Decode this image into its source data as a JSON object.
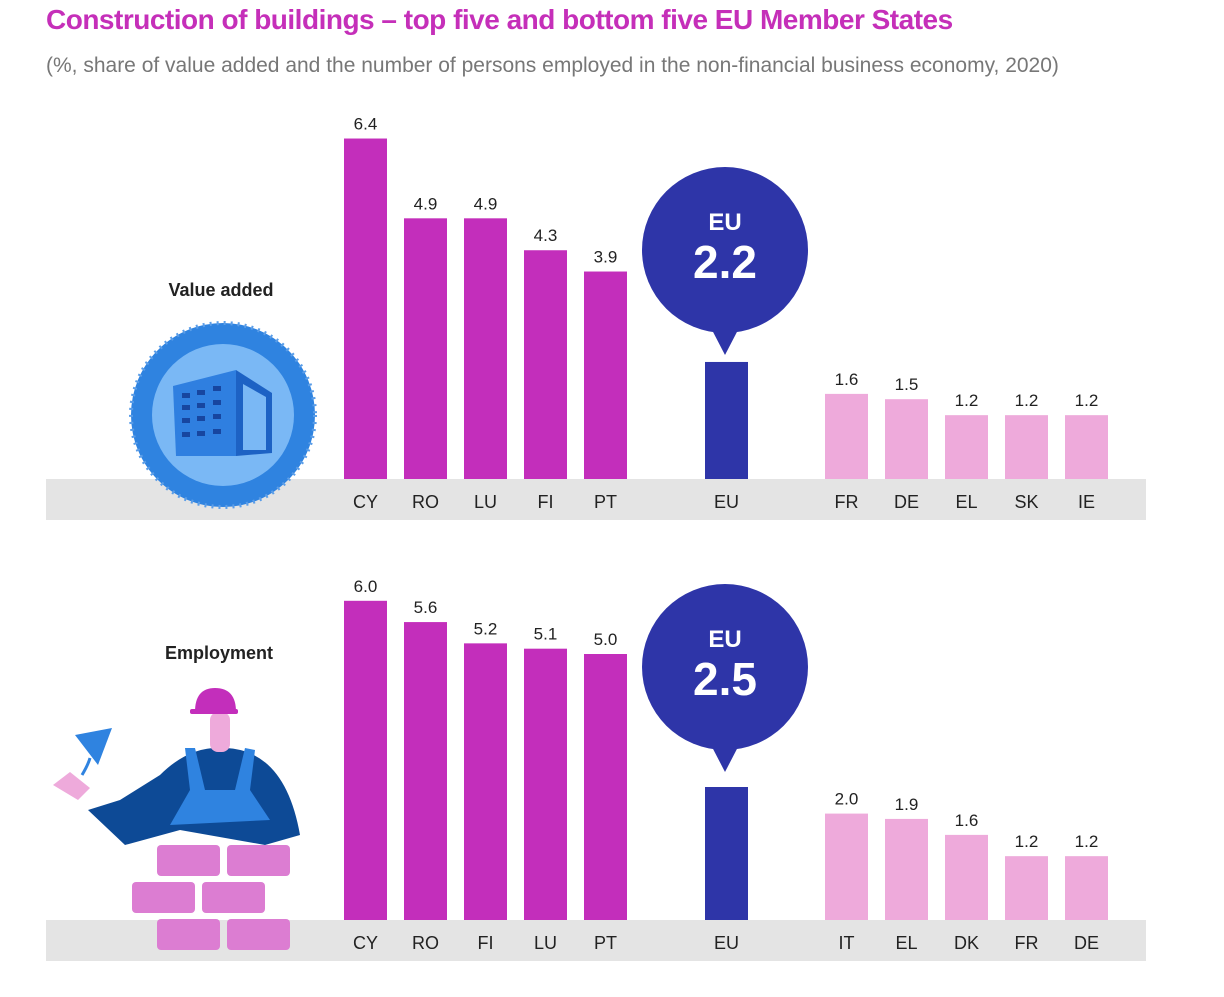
{
  "title": "Construction of buildings – top five and bottom five EU Member States",
  "subtitle": "(%, share of value added and the number of persons employed in the non-financial business economy, 2020)",
  "colors": {
    "title": "#c52fb9",
    "top": "#c32ebb",
    "eu": "#2e35a8",
    "bottom": "#eeaadb",
    "band": "#e4e4e4"
  },
  "chart_data": [
    {
      "type": "bar",
      "label": "Value added",
      "icon": "building-icon",
      "categories": [
        "CY",
        "RO",
        "LU",
        "FI",
        "PT",
        "EU",
        "FR",
        "DE",
        "EL",
        "SK",
        "IE"
      ],
      "values": [
        6.4,
        4.9,
        4.9,
        4.3,
        3.9,
        2.2,
        1.6,
        1.5,
        1.2,
        1.2,
        1.2
      ],
      "value_labels": [
        "6.4",
        "4.9",
        "4.9",
        "4.3",
        "3.9",
        "",
        "1.6",
        "1.5",
        "1.2",
        "1.2",
        "1.2"
      ],
      "groups": [
        "top",
        "top",
        "top",
        "top",
        "top",
        "eu",
        "bottom",
        "bottom",
        "bottom",
        "bottom",
        "bottom"
      ],
      "eu_bubble": {
        "label": "EU",
        "value": "2.2"
      }
    },
    {
      "type": "bar",
      "label": "Employment",
      "icon": "bricklayer-icon",
      "categories": [
        "CY",
        "RO",
        "FI",
        "LU",
        "PT",
        "EU",
        "IT",
        "EL",
        "DK",
        "FR",
        "DE"
      ],
      "values": [
        6.0,
        5.6,
        5.2,
        5.1,
        5.0,
        2.5,
        2.0,
        1.9,
        1.6,
        1.2,
        1.2
      ],
      "value_labels": [
        "6.0",
        "5.6",
        "5.2",
        "5.1",
        "5.0",
        "",
        "2.0",
        "1.9",
        "1.6",
        "1.2",
        "1.2"
      ],
      "groups": [
        "top",
        "top",
        "top",
        "top",
        "top",
        "eu",
        "bottom",
        "bottom",
        "bottom",
        "bottom",
        "bottom"
      ],
      "eu_bubble": {
        "label": "EU",
        "value": "2.5"
      }
    }
  ]
}
